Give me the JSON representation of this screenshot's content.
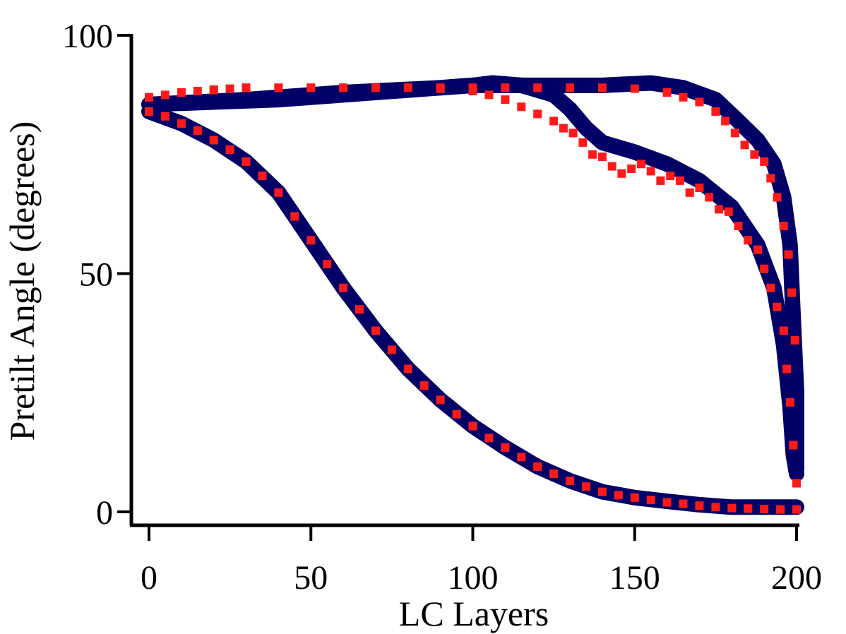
{
  "chart_data": {
    "type": "scatter",
    "xlabel": "LC Layers",
    "ylabel": "Pretilt Angle (degrees)",
    "xlim": [
      0,
      200
    ],
    "ylim": [
      0,
      100
    ],
    "x_ticks": [
      "0",
      "50",
      "100",
      "150",
      "200"
    ],
    "y_ticks": [
      "0",
      "50",
      "100"
    ],
    "grid": false,
    "colors": {
      "series_a": "#000066",
      "series_b": "#ff1a1a"
    },
    "series": [
      {
        "color": "#000066",
        "style": "thick-line",
        "points": [
          [
            0,
            84
          ],
          [
            10,
            81.5
          ],
          [
            20,
            78
          ],
          [
            30,
            73.5
          ],
          [
            40,
            67
          ],
          [
            50,
            57
          ],
          [
            60,
            47
          ],
          [
            70,
            38
          ],
          [
            80,
            30
          ],
          [
            90,
            23.5
          ],
          [
            100,
            18
          ],
          [
            110,
            13.5
          ],
          [
            120,
            9.5
          ],
          [
            130,
            6.5
          ],
          [
            140,
            4.2
          ],
          [
            150,
            3
          ],
          [
            160,
            2.2
          ],
          [
            170,
            1.5
          ],
          [
            180,
            1
          ],
          [
            190,
            1
          ],
          [
            200,
            1
          ]
        ]
      },
      {
        "color": "#000066",
        "style": "thick-line",
        "points": [
          [
            0,
            85.5
          ],
          [
            20,
            86
          ],
          [
            40,
            86.5
          ],
          [
            60,
            87.5
          ],
          [
            80,
            88.5
          ],
          [
            100,
            89.5
          ],
          [
            106,
            90
          ],
          [
            115,
            89.5
          ],
          [
            125,
            87.5
          ],
          [
            130,
            84.5
          ],
          [
            135,
            80.5
          ],
          [
            140,
            77.5
          ],
          [
            150,
            75.5
          ],
          [
            160,
            73
          ],
          [
            170,
            69.5
          ],
          [
            180,
            64
          ],
          [
            188,
            56
          ],
          [
            193,
            47
          ],
          [
            196,
            35
          ],
          [
            198,
            22
          ],
          [
            199,
            12
          ],
          [
            200,
            8
          ]
        ]
      },
      {
        "color": "#000066",
        "style": "thick-line",
        "points": [
          [
            0,
            85.5
          ],
          [
            30,
            86.5
          ],
          [
            60,
            88
          ],
          [
            90,
            89
          ],
          [
            100,
            89.5
          ],
          [
            120,
            89.5
          ],
          [
            140,
            89.5
          ],
          [
            155,
            90
          ],
          [
            165,
            89
          ],
          [
            175,
            86.5
          ],
          [
            182,
            82
          ],
          [
            188,
            78
          ],
          [
            193,
            73
          ],
          [
            196,
            66
          ],
          [
            198,
            56
          ],
          [
            199,
            40
          ],
          [
            200,
            25
          ],
          [
            200,
            9
          ]
        ]
      },
      {
        "color": "#ff1a1a",
        "style": "markers",
        "points": [
          [
            0,
            84
          ],
          [
            5,
            83
          ],
          [
            10,
            81.5
          ],
          [
            15,
            80
          ],
          [
            20,
            78
          ],
          [
            25,
            76
          ],
          [
            30,
            73.5
          ],
          [
            35,
            70.5
          ],
          [
            40,
            67
          ],
          [
            45,
            62
          ],
          [
            50,
            57
          ],
          [
            55,
            52
          ],
          [
            60,
            47
          ],
          [
            65,
            42.5
          ],
          [
            70,
            38
          ],
          [
            75,
            34
          ],
          [
            80,
            30
          ],
          [
            85,
            26.5
          ],
          [
            90,
            23.5
          ],
          [
            95,
            20.5
          ],
          [
            100,
            18
          ],
          [
            105,
            15.5
          ],
          [
            110,
            13.5
          ],
          [
            115,
            11.5
          ],
          [
            120,
            9.5
          ],
          [
            125,
            8
          ],
          [
            130,
            6.5
          ],
          [
            135,
            5.3
          ],
          [
            140,
            4.2
          ],
          [
            145,
            3.5
          ],
          [
            150,
            3
          ],
          [
            155,
            2.5
          ],
          [
            160,
            2
          ],
          [
            165,
            1.7
          ],
          [
            170,
            1.3
          ],
          [
            175,
            1
          ],
          [
            180,
            0.8
          ],
          [
            185,
            0.7
          ],
          [
            190,
            0.6
          ],
          [
            195,
            0.5
          ],
          [
            200,
            0.5
          ]
        ]
      },
      {
        "color": "#ff1a1a",
        "style": "markers",
        "points": [
          [
            0,
            87
          ],
          [
            5,
            87.5
          ],
          [
            10,
            88
          ],
          [
            15,
            88.3
          ],
          [
            20,
            88.6
          ],
          [
            25,
            88.8
          ],
          [
            30,
            89
          ],
          [
            40,
            89
          ],
          [
            50,
            89
          ],
          [
            60,
            89
          ],
          [
            70,
            89
          ],
          [
            80,
            89
          ],
          [
            90,
            88.8
          ],
          [
            100,
            88.3
          ],
          [
            105,
            87.5
          ],
          [
            110,
            86.5
          ],
          [
            115,
            85
          ],
          [
            120,
            83.5
          ],
          [
            125,
            82
          ],
          [
            128,
            80.5
          ],
          [
            131,
            79.5
          ],
          [
            134,
            77.5
          ],
          [
            137,
            75
          ],
          [
            140,
            74.5
          ],
          [
            143,
            72.5
          ],
          [
            146,
            71
          ],
          [
            149,
            72
          ],
          [
            152,
            73
          ],
          [
            155,
            71.5
          ],
          [
            158,
            69.5
          ],
          [
            161,
            70.5
          ],
          [
            164,
            69.5
          ],
          [
            167,
            67
          ],
          [
            170,
            68
          ],
          [
            173,
            66
          ],
          [
            176,
            63.5
          ],
          [
            179,
            63
          ],
          [
            182,
            60
          ],
          [
            185,
            57
          ],
          [
            188,
            55
          ],
          [
            190,
            51
          ],
          [
            192,
            47
          ],
          [
            194,
            43
          ],
          [
            196,
            38
          ],
          [
            197,
            30
          ],
          [
            198,
            23
          ],
          [
            199,
            14
          ],
          [
            200,
            6
          ]
        ]
      },
      {
        "color": "#ff1a1a",
        "style": "markers",
        "points": [
          [
            0,
            87
          ],
          [
            10,
            88
          ],
          [
            20,
            88.5
          ],
          [
            30,
            89
          ],
          [
            40,
            89
          ],
          [
            50,
            89
          ],
          [
            60,
            89
          ],
          [
            70,
            89
          ],
          [
            80,
            89
          ],
          [
            90,
            89
          ],
          [
            100,
            89
          ],
          [
            110,
            89
          ],
          [
            120,
            89
          ],
          [
            130,
            89
          ],
          [
            140,
            89
          ],
          [
            150,
            88.8
          ],
          [
            160,
            88
          ],
          [
            165,
            87
          ],
          [
            170,
            86
          ],
          [
            175,
            84
          ],
          [
            178,
            82
          ],
          [
            181,
            79.5
          ],
          [
            184,
            77
          ],
          [
            187,
            75
          ],
          [
            190,
            73.5
          ],
          [
            192,
            70
          ],
          [
            194,
            66
          ],
          [
            196,
            60
          ],
          [
            197.5,
            54
          ],
          [
            198.5,
            46
          ],
          [
            199.5,
            36
          ]
        ]
      }
    ]
  }
}
